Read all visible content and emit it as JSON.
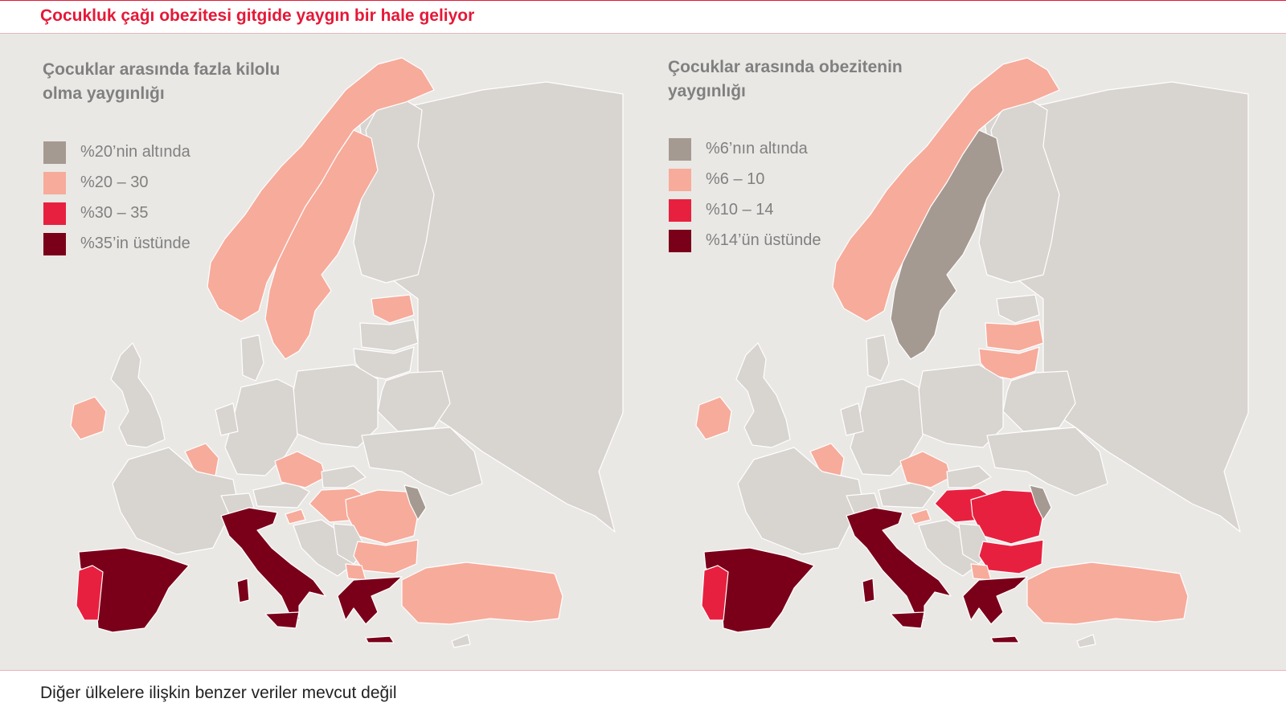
{
  "headline": "Çocukluk çağı obezitesi gitgide yaygın bir hale geliyor",
  "colors": {
    "accent": "#e51837",
    "background": "#eae8e5",
    "no_data": "#d8d4d0",
    "sea": "#eae8e5"
  },
  "maps": [
    {
      "title_line1": "Çocuklar arasında fazla kilolu",
      "title_line2": "olma yaygınlığı",
      "legend": [
        {
          "label": "%20’nin altında",
          "color": "#a59a91"
        },
        {
          "label": "%20 – 30",
          "color": "#f7ab9b"
        },
        {
          "label": "%30 – 35",
          "color": "#e8203f"
        },
        {
          "label": "%35’in üstünde",
          "color": "#7a0019"
        }
      ],
      "countries": {
        "norway": "#f7ab9b",
        "sweden": "#f7ab9b",
        "ireland": "#f7ab9b",
        "belgium": "#f7ab9b",
        "czechia": "#f7ab9b",
        "estonia": "#f7ab9b",
        "hungary": "#f7ab9b",
        "romania": "#f7ab9b",
        "bulgaria": "#f7ab9b",
        "turkey": "#f7ab9b",
        "slovenia": "#f7ab9b",
        "macedonia": "#f7ab9b",
        "moldova": "#a59a91",
        "portugal": "#e8203f",
        "spain": "#7a0019",
        "italy": "#7a0019",
        "greece": "#7a0019",
        "sardinia": "#7a0019",
        "sicily": "#7a0019",
        "crete": "#7a0019",
        "lithuania": "#d8d4d0",
        "latvia": "#d8d4d0"
      }
    },
    {
      "title_line1": "Çocuklar arasında obezitenin",
      "title_line2": "yaygınlığı",
      "legend": [
        {
          "label": "%6’nın altında",
          "color": "#a59a91"
        },
        {
          "label": "%6 – 10",
          "color": "#f7ab9b"
        },
        {
          "label": "%10 – 14",
          "color": "#e8203f"
        },
        {
          "label": "%14’ün üstünde",
          "color": "#7a0019"
        }
      ],
      "countries": {
        "norway": "#f7ab9b",
        "sweden": "#a59a91",
        "ireland": "#f7ab9b",
        "belgium": "#f7ab9b",
        "czechia": "#f7ab9b",
        "estonia": "#d8d4d0",
        "hungary": "#e8203f",
        "romania": "#e8203f",
        "bulgaria": "#e8203f",
        "turkey": "#f7ab9b",
        "slovenia": "#f7ab9b",
        "macedonia": "#f7ab9b",
        "moldova": "#a59a91",
        "portugal": "#e8203f",
        "spain": "#7a0019",
        "italy": "#7a0019",
        "greece": "#7a0019",
        "sardinia": "#7a0019",
        "sicily": "#7a0019",
        "crete": "#7a0019",
        "lithuania": "#f7ab9b",
        "latvia": "#f7ab9b"
      }
    }
  ],
  "footnote": "Diğer ülkelere ilişkin benzer veriler mevcut değil"
}
